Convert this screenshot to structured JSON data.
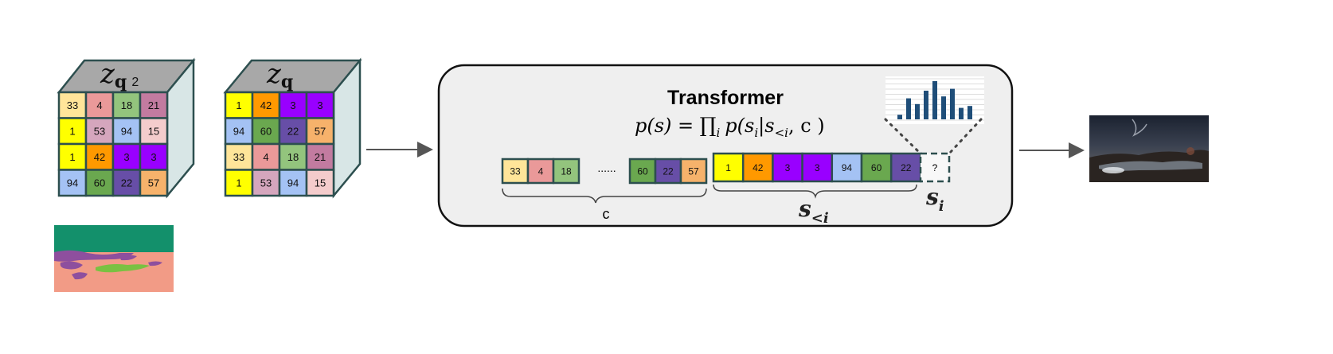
{
  "cube_z2": {
    "label_main": "z",
    "label_sub": "q",
    "label_index": "2",
    "grid": [
      [
        "33",
        "4",
        "18",
        "21"
      ],
      [
        "1",
        "53",
        "94",
        "15"
      ],
      [
        "1",
        "42",
        "3",
        "3"
      ],
      [
        "94",
        "60",
        "22",
        "57"
      ]
    ]
  },
  "cube_z": {
    "label_main": "z",
    "label_sub": "q",
    "grid": [
      [
        "1",
        "42",
        "3",
        "3"
      ],
      [
        "94",
        "60",
        "22",
        "57"
      ],
      [
        "33",
        "4",
        "18",
        "21"
      ],
      [
        "1",
        "53",
        "94",
        "15"
      ]
    ]
  },
  "colors": {
    "1": "#ffff00",
    "3": "#9900ff",
    "4": "#ea9999",
    "15": "#f4cccc",
    "18": "#93c47d",
    "21": "#c27ba0",
    "22": "#674ea7",
    "33": "#ffe599",
    "42": "#ff9900",
    "53": "#d5a6bd",
    "57": "#f6b26b",
    "60": "#6aa84f",
    "94": "#a4c2f4",
    "cell_border": "#2d4f4f",
    "cube_top": "#a8a8a8",
    "cube_side": "#d8e6e6",
    "panel_bg": "#efefef",
    "hist_bar": "#1f4e79"
  },
  "transformer": {
    "title": "Transformer",
    "formula_lhs": "p(s) = ",
    "formula_prod": "∏",
    "formula_prod_sub": "i",
    "formula_rhs": "p(s",
    "formula_rhs_sub": "i",
    "formula_given": "|s",
    "formula_given_sub": "<i",
    "formula_cond": ", c )",
    "cond_tokens_start": [
      "33",
      "4",
      "18"
    ],
    "ellipsis": "......",
    "cond_tokens_end": [
      "60",
      "22",
      "57"
    ],
    "cond_label": "c",
    "seq_tokens": [
      "1",
      "42",
      "3",
      "3",
      "94",
      "60",
      "22"
    ],
    "seq_label_main": "s",
    "seq_label_sub": "<i",
    "next_token": "?",
    "next_label_main": "s",
    "next_label_sub": "i",
    "histogram_values": [
      0.12,
      0.55,
      0.4,
      0.75,
      1.0,
      0.6,
      0.8,
      0.3,
      0.35
    ]
  }
}
